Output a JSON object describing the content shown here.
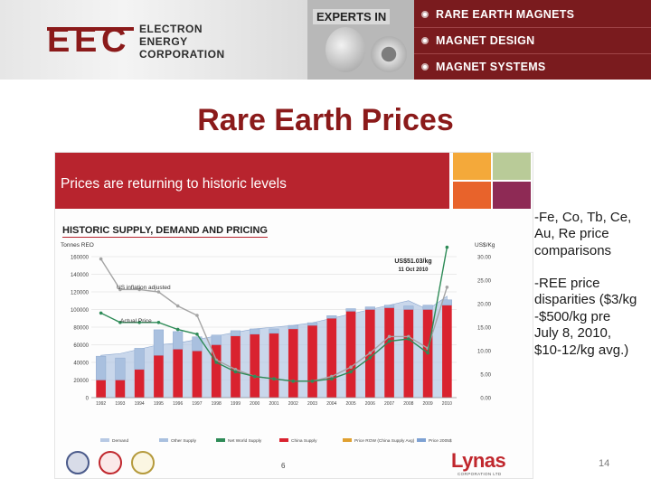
{
  "header": {
    "logo_text": "EEC",
    "company_lines": [
      "ELECTRON",
      "ENERGY",
      "CORPORATION"
    ],
    "experts_label": "EXPERTS IN",
    "menu": [
      "RARE EARTH MAGNETS",
      "MAGNET DESIGN",
      "MAGNET SYSTEMS"
    ]
  },
  "title": "Rare Earth Prices",
  "slide": {
    "subtitle": "Prices are returning to historic levels",
    "chart_heading": "HISTORIC SUPPLY, DEMAND AND PRICING",
    "footer_page": "6",
    "lynas_logo": "Lynas",
    "lynas_sub": "CORPORATION LTD",
    "colors": {
      "band": "#b8242e",
      "tiles": [
        "#f4a93a",
        "#b9cb98",
        "#e8632b",
        "#8e2a55"
      ]
    }
  },
  "notes": [
    "-Fe, Co, Tb, Ce,\nAu, Re price\ncomparisons",
    "-REE price\ndisparities ($3/kg\n-$500/kg pre\nJuly 8, 2010,\n$10-12/kg avg.)"
  ],
  "slide_number": "14",
  "chart_data": {
    "type": "bar",
    "title": "HISTORIC SUPPLY, DEMAND AND PRICING",
    "left_axis_label": "Tonnes REO",
    "right_axis_label": "US$/Kg",
    "categories": [
      "1992",
      "1993",
      "1994",
      "1995",
      "1996",
      "1997",
      "1998",
      "1999",
      "2000",
      "2001",
      "2002",
      "2003",
      "2004",
      "2005",
      "2006",
      "2007",
      "2008",
      "2009",
      "2010"
    ],
    "y_left": {
      "min": 0,
      "max": 160000,
      "ticks": [
        "0",
        "20000",
        "40000",
        "60000",
        "80000",
        "100000",
        "120000",
        "140000",
        "160000"
      ]
    },
    "y_right": {
      "min": 0,
      "max": 30,
      "ticks": [
        "0.00",
        "5.00",
        "10.00",
        "15.00",
        "20.00",
        "25.00",
        "30.00"
      ]
    },
    "series": [
      {
        "name": "China Supply",
        "kind": "bar",
        "axis": "left",
        "color": "#d9222f",
        "values": [
          20000,
          20000,
          32000,
          48000,
          55000,
          53000,
          60000,
          70000,
          72000,
          73000,
          78000,
          82000,
          90000,
          98000,
          100000,
          102000,
          100000,
          100000,
          105000
        ]
      },
      {
        "name": "Other Supply",
        "kind": "bar-stack",
        "axis": "left",
        "color": "#a9c0df",
        "values": [
          27000,
          25000,
          24000,
          29000,
          20000,
          16000,
          11000,
          6000,
          6000,
          5000,
          4000,
          3000,
          3000,
          3000,
          3000,
          3000,
          4000,
          5000,
          6000
        ]
      },
      {
        "name": "Demand",
        "kind": "area",
        "axis": "left",
        "color": "#b7c9e4",
        "values": [
          48000,
          50000,
          55000,
          60000,
          62000,
          66000,
          70000,
          74000,
          78000,
          80000,
          82000,
          85000,
          90000,
          95000,
          100000,
          105000,
          110000,
          100000,
          115000
        ]
      },
      {
        "name": "Price (Inflation adjusted)",
        "kind": "line",
        "axis": "right",
        "color": "#a4a4a4",
        "values": [
          29.5,
          23,
          23,
          22.5,
          19.5,
          17.5,
          8,
          6,
          4.5,
          4,
          3.5,
          3.5,
          4.5,
          6.5,
          9.5,
          13,
          13,
          10.5,
          23.5
        ]
      },
      {
        "name": "Actual Price",
        "kind": "line",
        "axis": "right",
        "color": "#2e8b57",
        "values": [
          18,
          16,
          16,
          16,
          14.5,
          13.5,
          7.5,
          5.5,
          4.5,
          4,
          3.5,
          3.5,
          4,
          5.5,
          8.5,
          12,
          12.5,
          9.5,
          32
        ]
      }
    ],
    "annotations": [
      {
        "text": "US inflation adjusted"
      },
      {
        "text": "Actual Price"
      },
      {
        "text": "US$51.03/kg",
        "sub": "11 Oct 2010"
      }
    ],
    "legend": [
      "Demand",
      "Other Supply",
      "Net World Supply",
      "China Supply",
      "Price ROW (China Supply Avg)",
      "Price 2005$"
    ],
    "legend_position": "bottom",
    "grid": true
  }
}
